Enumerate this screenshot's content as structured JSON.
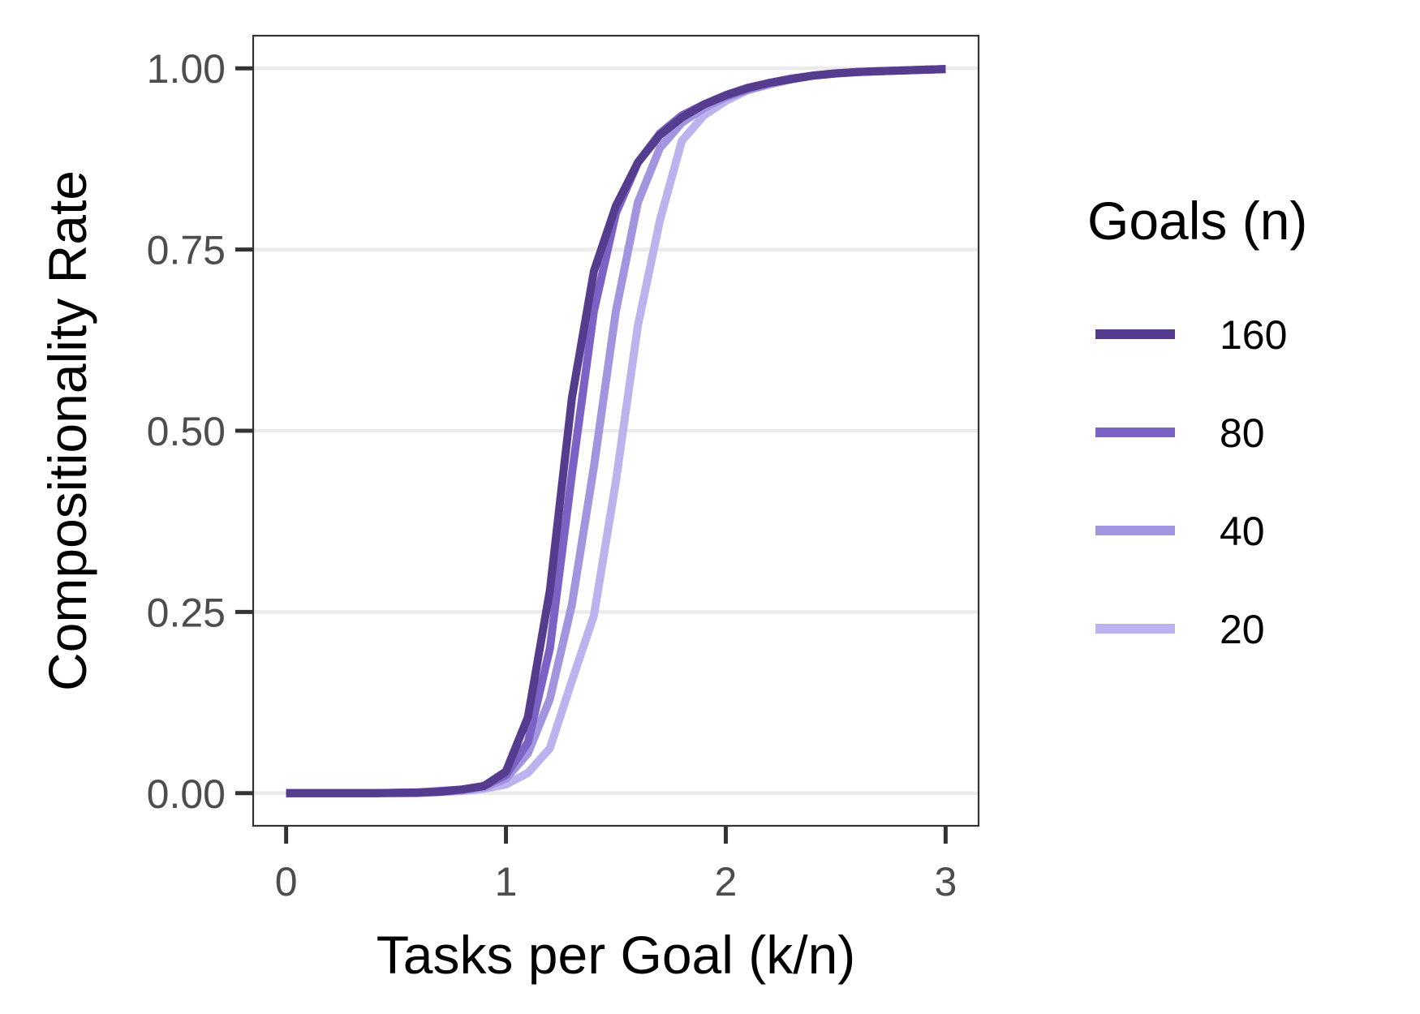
{
  "chart_data": {
    "type": "line",
    "xlabel": "Tasks per Goal (k/n)",
    "ylabel": "Compositionality Rate",
    "xlim": [
      -0.15,
      3.15
    ],
    "ylim": [
      -0.045,
      1.045
    ],
    "x_ticks": [
      0,
      1,
      2,
      3
    ],
    "x_tick_labels": [
      "0",
      "1",
      "2",
      "3"
    ],
    "y_ticks": [
      0,
      0.25,
      0.5,
      0.75,
      1
    ],
    "y_tick_labels": [
      "0.00",
      "0.25",
      "0.50",
      "0.75",
      "1.00"
    ],
    "grid": "horizontal major",
    "legend": {
      "title": "Goals (n)",
      "position": "right",
      "entries": [
        "160",
        "80",
        "40",
        "20"
      ]
    },
    "series": [
      {
        "name": "20",
        "color": "#bcb3ee",
        "x": [
          0,
          0.2,
          0.4,
          0.6,
          0.8,
          0.9,
          1.0,
          1.1,
          1.2,
          1.3,
          1.4,
          1.5,
          1.6,
          1.7,
          1.8,
          1.9,
          2.0,
          2.1,
          2.2,
          2.3,
          2.4,
          2.5,
          2.6,
          2.7,
          2.8,
          2.9,
          3.0
        ],
        "y": [
          0,
          0,
          0,
          0,
          0.003,
          0.006,
          0.012,
          0.028,
          0.062,
          0.155,
          0.245,
          0.43,
          0.645,
          0.79,
          0.9,
          0.935,
          0.955,
          0.97,
          0.978,
          0.985,
          0.99,
          0.993,
          0.995,
          0.996,
          0.997,
          0.998,
          0.999
        ]
      },
      {
        "name": "40",
        "color": "#a294de",
        "x": [
          0,
          0.2,
          0.4,
          0.6,
          0.8,
          0.9,
          1.0,
          1.1,
          1.2,
          1.3,
          1.4,
          1.5,
          1.6,
          1.7,
          1.8,
          1.9,
          2.0,
          2.1,
          2.2,
          2.3,
          2.4,
          2.5,
          2.6,
          2.7,
          2.8,
          2.9,
          3.0
        ],
        "y": [
          0,
          0,
          0,
          0,
          0.004,
          0.008,
          0.02,
          0.055,
          0.13,
          0.26,
          0.45,
          0.665,
          0.815,
          0.89,
          0.925,
          0.945,
          0.96,
          0.97,
          0.978,
          0.985,
          0.99,
          0.993,
          0.995,
          0.996,
          0.997,
          0.998,
          0.999
        ]
      },
      {
        "name": "80",
        "color": "#7c62c4",
        "x": [
          0,
          0.2,
          0.4,
          0.6,
          0.8,
          0.9,
          1.0,
          1.1,
          1.2,
          1.3,
          1.4,
          1.5,
          1.6,
          1.7,
          1.8,
          1.9,
          2.0,
          2.1,
          2.2,
          2.3,
          2.4,
          2.5,
          2.6,
          2.7,
          2.8,
          2.9,
          3.0
        ],
        "y": [
          0,
          0,
          0,
          0.001,
          0.005,
          0.01,
          0.025,
          0.07,
          0.2,
          0.44,
          0.665,
          0.8,
          0.87,
          0.91,
          0.935,
          0.95,
          0.962,
          0.972,
          0.98,
          0.986,
          0.99,
          0.993,
          0.995,
          0.996,
          0.997,
          0.998,
          0.999
        ]
      },
      {
        "name": "160",
        "color": "#553c8e",
        "x": [
          0,
          0.2,
          0.4,
          0.6,
          0.7,
          0.8,
          0.9,
          1.0,
          1.1,
          1.2,
          1.3,
          1.4,
          1.5,
          1.6,
          1.7,
          1.8,
          1.9,
          2.0,
          2.1,
          2.2,
          2.3,
          2.4,
          2.5,
          2.6,
          2.7,
          2.8,
          2.9,
          3.0
        ],
        "y": [
          0,
          0,
          0,
          0.001,
          0.002,
          0.005,
          0.01,
          0.03,
          0.105,
          0.28,
          0.545,
          0.72,
          0.81,
          0.87,
          0.908,
          0.932,
          0.95,
          0.963,
          0.973,
          0.98,
          0.985,
          0.99,
          0.993,
          0.995,
          0.996,
          0.997,
          0.998,
          0.999
        ]
      }
    ]
  }
}
